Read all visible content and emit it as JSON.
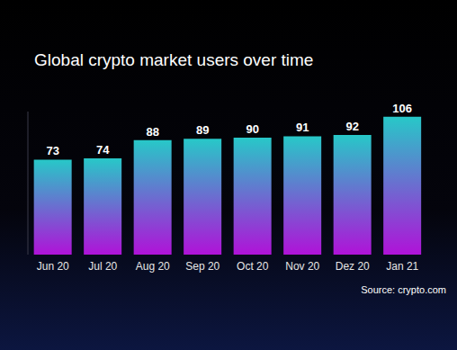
{
  "chart_data": {
    "type": "bar",
    "title": "Global crypto market users over time",
    "source": "Source: crypto.com",
    "categories": [
      "Jun 20",
      "Jul 20",
      "Aug 20",
      "Sep 20",
      "Oct 20",
      "Nov 20",
      "Dez 20",
      "Jan 21"
    ],
    "values": [
      73,
      74,
      88,
      89,
      90,
      91,
      92,
      106
    ],
    "color": "#27c8c8",
    "ylim": [
      0,
      110
    ],
    "yticks": [],
    "grid": false,
    "data_labels": true,
    "tick_labels": "x"
  }
}
